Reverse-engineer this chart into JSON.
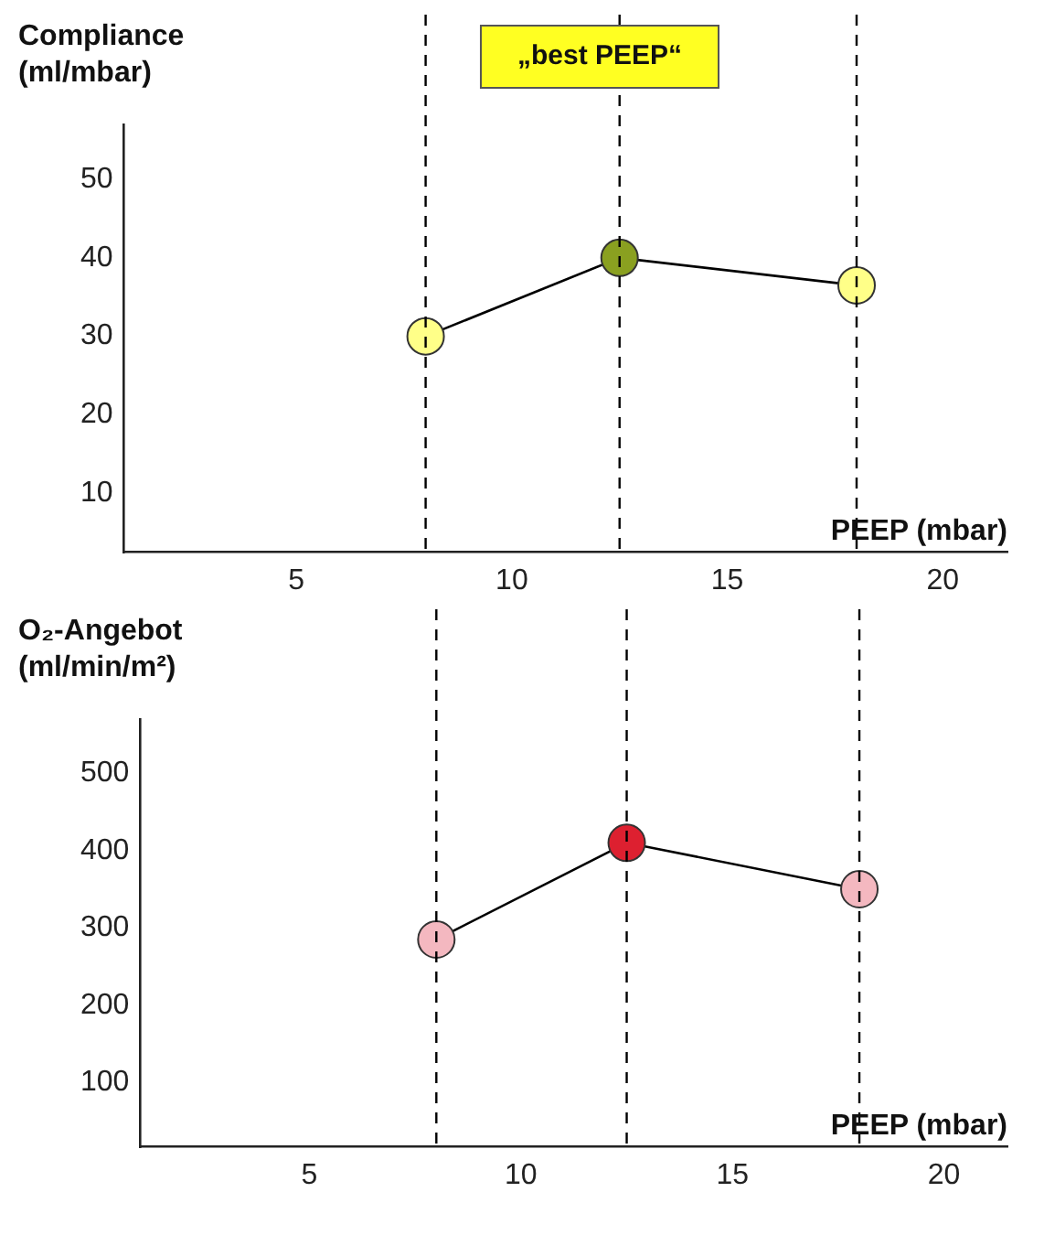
{
  "chart_data": [
    {
      "type": "line",
      "title": "„best PEEP“",
      "ylabel": "Compliance\n(ml/mbar)",
      "xlabel": "PEEP (mbar)",
      "x": [
        8,
        12.5,
        18
      ],
      "series": [
        {
          "color": "#000000",
          "colors": [
            "#ffff88",
            "#8aa020",
            "#ffff88"
          ],
          "values": [
            30,
            40,
            36.5
          ]
        }
      ],
      "xlim": [
        1,
        21.5
      ],
      "xticks": [
        5,
        10,
        15,
        20
      ],
      "ylim": [
        2.5,
        57
      ],
      "yticks": [
        10,
        20,
        30,
        40,
        50
      ],
      "grid": false,
      "legend": false,
      "marker": "circle",
      "ref_lines": [
        {
          "axis": "x",
          "value": 8,
          "line_style": "dashed",
          "color": "#000000"
        },
        {
          "axis": "x",
          "value": 12.5,
          "line_style": "dashed",
          "color": "#000000"
        },
        {
          "axis": "x",
          "value": 18,
          "line_style": "dashed",
          "color": "#000000"
        }
      ]
    },
    {
      "type": "line",
      "ylabel": "O₂-Angebot\n(ml/min/m²)",
      "xlabel": "PEEP (mbar)",
      "x": [
        8,
        12.5,
        18
      ],
      "series": [
        {
          "color": "#000000",
          "colors": [
            "#f4b8c0",
            "#dd2030",
            "#f4b8c0"
          ],
          "values": [
            285,
            410,
            350
          ]
        }
      ],
      "xlim": [
        1,
        21.5
      ],
      "xticks": [
        5,
        10,
        15,
        20
      ],
      "ylim": [
        17,
        570
      ],
      "yticks": [
        100,
        200,
        300,
        400,
        500
      ],
      "grid": false,
      "legend": false,
      "marker": "circle",
      "ref_lines": [
        {
          "axis": "x",
          "value": 8,
          "line_style": "dashed",
          "color": "#000000"
        },
        {
          "axis": "x",
          "value": 12.5,
          "line_style": "dashed",
          "color": "#000000"
        },
        {
          "axis": "x",
          "value": 18,
          "line_style": "dashed",
          "color": "#000000"
        }
      ]
    }
  ]
}
